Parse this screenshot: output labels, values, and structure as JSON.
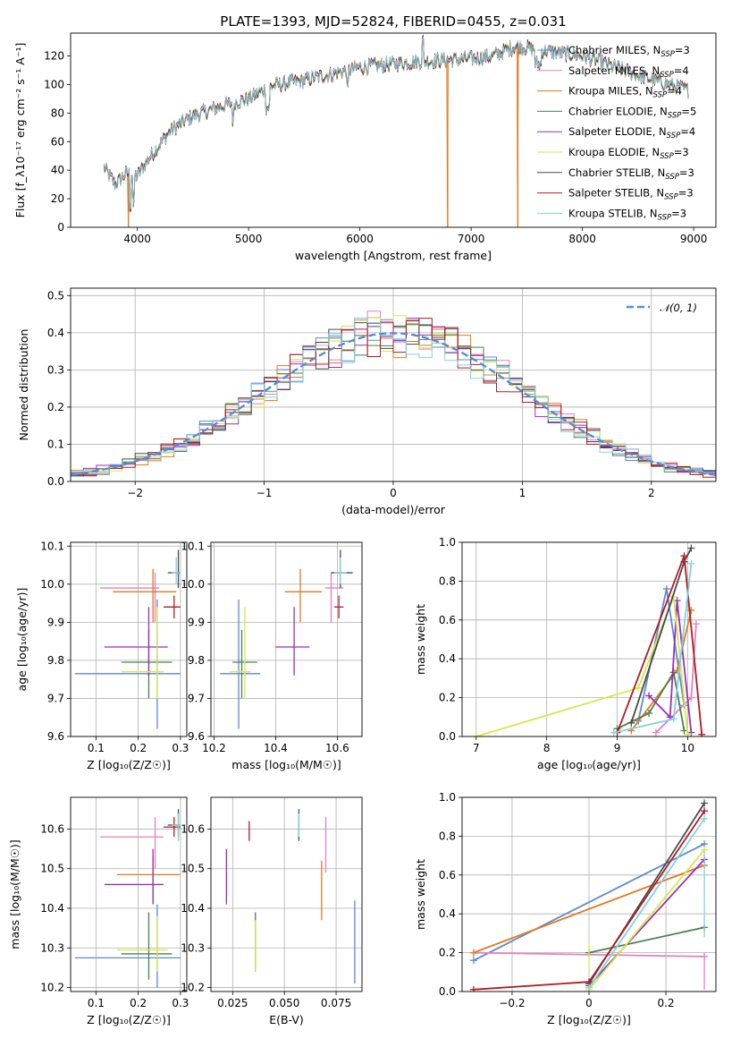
{
  "figure": {
    "title": "PLATE=1393, MJD=52824, FIBERID=0455, z=0.031"
  },
  "colors": {
    "Chabrier MILES": "#5a8ad6",
    "Salpeter MILES": "#e67fc0",
    "Kroupa MILES": "#e07a1f",
    "Chabrier ELODIE": "#4f7f4f",
    "Salpeter ELODIE": "#9a2fb8",
    "Kroupa ELODIE": "#d5e84a",
    "Chabrier STELIB": "#4a4a4a",
    "Salpeter STELIB": "#b01c22",
    "Kroupa STELIB": "#7dd3e0"
  },
  "chart_data": [
    {
      "id": "spectrum",
      "type": "line",
      "xlabel": "wavelength [Angstrom, rest frame]",
      "ylabel": "Flux [f_λ10⁻¹⁷ erg cm⁻² s⁻¹ A⁻¹]",
      "xlim": [
        3400,
        9200
      ],
      "ylim": [
        0,
        136
      ],
      "xticks": [
        4000,
        5000,
        6000,
        7000,
        8000,
        9000
      ],
      "yticks": [
        0,
        20,
        40,
        60,
        80,
        100,
        120
      ],
      "grid": false,
      "legend_position": "top-right",
      "wavelength_range": [
        3700,
        8950
      ],
      "continuum_knots": {
        "x": [
          3700,
          3800,
          3900,
          4000,
          4100,
          4200,
          4300,
          4500,
          4800,
          5000,
          5200,
          5500,
          6000,
          6500,
          7000,
          7200,
          7400,
          7700,
          8000,
          8300,
          8600,
          8950
        ],
        "y": [
          42,
          30,
          38,
          36,
          48,
          58,
          68,
          78,
          86,
          90,
          99,
          103,
          112,
          116,
          118,
          120,
          127,
          123,
          120,
          112,
          104,
          96
        ]
      },
      "dropouts": [
        {
          "x": 3920,
          "series": "Kroupa MILES"
        },
        {
          "x": 6790,
          "series": "Kroupa MILES"
        },
        {
          "x": 7420,
          "series": "Kroupa MILES"
        }
      ],
      "series": [
        {
          "name": "Chabrier MILES",
          "nssp": "3"
        },
        {
          "name": "Salpeter MILES",
          "nssp": "4"
        },
        {
          "name": "Kroupa MILES",
          "nssp": "4"
        },
        {
          "name": "Chabrier ELODIE",
          "nssp": "5"
        },
        {
          "name": "Salpeter ELODIE",
          "nssp": "4"
        },
        {
          "name": "Kroupa ELODIE",
          "nssp": "3"
        },
        {
          "name": "Chabrier STELIB",
          "nssp": "3"
        },
        {
          "name": "Salpeter STELIB",
          "nssp": "3"
        },
        {
          "name": "Kroupa STELIB",
          "nssp": "3"
        }
      ],
      "legend_nssp_prefix": "N",
      "legend_nssp_sub": "SSP"
    },
    {
      "id": "residuals",
      "type": "line",
      "xlabel": "(data-model)/error",
      "ylabel": "Normed distribution",
      "xlim": [
        -2.5,
        2.5
      ],
      "ylim": [
        0,
        0.52
      ],
      "xticks": [
        -2,
        -1,
        0,
        1,
        2
      ],
      "yticks": [
        0.0,
        0.1,
        0.2,
        0.3,
        0.4,
        0.5
      ],
      "grid": true,
      "legend_position": "top-right",
      "legend_label": "𝒩(0, 1)",
      "gaussian": {
        "mu": 0,
        "sigma": 1,
        "color": "#5a8ad6"
      },
      "histogram_bins": {
        "start": -2.5,
        "width": 0.1,
        "count": 50
      },
      "histogram_seed": 7
    },
    {
      "id": "age_vs_Z",
      "type": "scatter",
      "xlabel": "Z [log₁₀(Z/Z☉)]",
      "ylabel": "age  [log₁₀(age/yr)]",
      "xlim": [
        0.04,
        0.315
      ],
      "ylim": [
        9.6,
        10.11
      ],
      "xticks": [
        0.1,
        0.2,
        0.3
      ],
      "yticks": [
        9.6,
        9.7,
        9.8,
        9.9,
        10.0,
        10.1
      ],
      "grid": true,
      "points": [
        {
          "series": "Chabrier MILES",
          "x": 0.05,
          "x2": 0.3,
          "y": 9.765,
          "ex1": 9.765,
          "ey1": 9.765,
          "yv": [
            9.62,
            9.96
          ],
          "xv": 0.245
        },
        {
          "series": "Salpeter MILES",
          "x": 0.11,
          "x2": 0.25,
          "y": 9.99,
          "yv": [
            9.9,
            10.03
          ],
          "xv": 0.24
        },
        {
          "series": "Kroupa MILES",
          "x": 0.14,
          "x2": 0.29,
          "y": 9.98,
          "yv": [
            9.9,
            10.04
          ],
          "xv": 0.235
        },
        {
          "series": "Chabrier ELODIE",
          "x": 0.16,
          "x2": 0.28,
          "y": 9.795,
          "yv": [
            9.7,
            9.88
          ],
          "xv": 0.225
        },
        {
          "series": "Salpeter ELODIE",
          "x": 0.12,
          "x2": 0.27,
          "y": 9.835,
          "yv": [
            9.76,
            9.94
          ],
          "xv": 0.225
        },
        {
          "series": "Kroupa ELODIE",
          "x": 0.16,
          "x2": 0.26,
          "y": 9.77,
          "yv": [
            9.7,
            9.94
          ],
          "xv": 0.245
        },
        {
          "series": "Chabrier STELIB",
          "x": 0.27,
          "x2": 0.3,
          "y": 10.03,
          "yv": [
            9.99,
            10.09
          ],
          "xv": 0.295
        },
        {
          "series": "Salpeter STELIB",
          "x": 0.26,
          "x2": 0.3,
          "y": 9.94,
          "yv": [
            9.91,
            9.97
          ],
          "xv": 0.285
        },
        {
          "series": "Kroupa STELIB",
          "x": 0.28,
          "x2": 0.3,
          "y": 10.03,
          "yv": [
            10.0,
            10.07
          ],
          "xv": 0.29
        }
      ]
    },
    {
      "id": "age_vs_mass",
      "type": "scatter",
      "xlabel": "mass [log₁₀(M/M☉)]",
      "ylabel": "",
      "xlim": [
        10.19,
        10.68
      ],
      "ylim": [
        9.6,
        10.11
      ],
      "xticks": [
        10.2,
        10.4,
        10.6
      ],
      "yticks": [
        9.6,
        9.7,
        9.8,
        9.9,
        10.0,
        10.1
      ],
      "grid": true,
      "points": [
        {
          "series": "Chabrier MILES",
          "x": 10.22,
          "x2": 10.35,
          "y": 9.765,
          "yv": [
            9.62,
            9.96
          ],
          "xv": 10.28
        },
        {
          "series": "Salpeter MILES",
          "x": 10.56,
          "x2": 10.62,
          "y": 9.99,
          "yv": [
            9.9,
            10.03
          ],
          "xv": 10.58
        },
        {
          "series": "Kroupa MILES",
          "x": 10.43,
          "x2": 10.55,
          "y": 9.98,
          "yv": [
            9.9,
            10.04
          ],
          "xv": 10.48
        },
        {
          "series": "Chabrier ELODIE",
          "x": 10.26,
          "x2": 10.34,
          "y": 9.795,
          "yv": [
            9.7,
            9.88
          ],
          "xv": 10.29
        },
        {
          "series": "Salpeter ELODIE",
          "x": 10.4,
          "x2": 10.51,
          "y": 9.835,
          "yv": [
            9.76,
            9.94
          ],
          "xv": 10.46
        },
        {
          "series": "Kroupa ELODIE",
          "x": 10.25,
          "x2": 10.32,
          "y": 9.77,
          "yv": [
            9.7,
            9.94
          ],
          "xv": 10.3
        },
        {
          "series": "Chabrier STELIB",
          "x": 10.58,
          "x2": 10.65,
          "y": 10.03,
          "yv": [
            9.99,
            10.09
          ],
          "xv": 10.61
        },
        {
          "series": "Salpeter STELIB",
          "x": 10.59,
          "x2": 10.62,
          "y": 9.94,
          "yv": [
            9.91,
            9.97
          ],
          "xv": 10.605
        },
        {
          "series": "Kroupa STELIB",
          "x": 10.59,
          "x2": 10.63,
          "y": 10.03,
          "yv": [
            10.0,
            10.07
          ],
          "xv": 10.61
        }
      ]
    },
    {
      "id": "weight_vs_age",
      "type": "line",
      "xlabel": "age  [log₁₀(age/yr)]",
      "ylabel": "mass weight",
      "xlim": [
        6.8,
        10.4
      ],
      "ylim": [
        0,
        1.0
      ],
      "xticks": [
        7,
        8,
        9,
        10
      ],
      "yticks": [
        0.0,
        0.2,
        0.4,
        0.6,
        0.8,
        1.0
      ],
      "grid": true,
      "series": [
        {
          "name": "Chabrier MILES",
          "x": [
            9.3,
            9.7,
            9.95
          ],
          "y": [
            0.08,
            0.76,
            0.16
          ]
        },
        {
          "name": "Salpeter MILES",
          "x": [
            9.55,
            10.05,
            10.12
          ],
          "y": [
            0.02,
            0.2,
            0.58
          ]
        },
        {
          "name": "Kroupa MILES",
          "x": [
            9.2,
            9.85,
            10.05
          ],
          "y": [
            0.03,
            0.34,
            0.65
          ]
        },
        {
          "name": "Chabrier ELODIE",
          "x": [
            9.0,
            9.45,
            9.8,
            9.95
          ],
          "y": [
            0.04,
            0.12,
            0.33,
            0.03
          ]
        },
        {
          "name": "Salpeter ELODIE",
          "x": [
            9.45,
            9.75,
            9.85,
            10.05
          ],
          "y": [
            0.21,
            0.1,
            0.7,
            0.02
          ]
        },
        {
          "name": "Kroupa ELODIE",
          "x": [
            7.0,
            9.3,
            9.8,
            10.0
          ],
          "y": [
            0.0,
            0.25,
            0.72,
            0.01
          ]
        },
        {
          "name": "Chabrier STELIB",
          "x": [
            9.2,
            9.95,
            10.05
          ],
          "y": [
            0.07,
            0.9,
            0.97
          ]
        },
        {
          "name": "Salpeter STELIB",
          "x": [
            9.0,
            9.95,
            10.2
          ],
          "y": [
            0.02,
            0.93,
            0.01
          ]
        },
        {
          "name": "Kroupa STELIB",
          "x": [
            8.95,
            9.8,
            10.05
          ],
          "y": [
            0.02,
            0.09,
            0.89
          ]
        }
      ]
    },
    {
      "id": "mass_vs_Z",
      "type": "scatter",
      "xlabel": "Z [log₁₀(Z/Z☉)]",
      "ylabel": "mass [log₁₀(M/M☉)]",
      "xlim": [
        0.04,
        0.315
      ],
      "ylim": [
        10.19,
        10.68
      ],
      "xticks": [
        0.1,
        0.2,
        0.3
      ],
      "yticks": [
        10.2,
        10.3,
        10.4,
        10.5,
        10.6
      ],
      "grid": true,
      "points": [
        {
          "series": "Chabrier MILES",
          "x": 0.05,
          "x2": 0.3,
          "y": 10.275,
          "yv": [
            10.2,
            10.41
          ],
          "xv": 0.245
        },
        {
          "series": "Salpeter MILES",
          "x": 0.11,
          "x2": 0.26,
          "y": 10.58,
          "yv": [
            10.5,
            10.63
          ],
          "xv": 0.24
        },
        {
          "series": "Kroupa MILES",
          "x": 0.15,
          "x2": 0.3,
          "y": 10.485,
          "yv": [
            10.41,
            10.53
          ],
          "xv": 0.235
        },
        {
          "series": "Chabrier ELODIE",
          "x": 0.16,
          "x2": 0.28,
          "y": 10.285,
          "yv": [
            10.22,
            10.39
          ],
          "xv": 0.225
        },
        {
          "series": "Salpeter ELODIE",
          "x": 0.12,
          "x2": 0.26,
          "y": 10.46,
          "yv": [
            10.41,
            10.55
          ],
          "xv": 0.235
        },
        {
          "series": "Kroupa ELODIE",
          "x": 0.15,
          "x2": 0.27,
          "y": 10.295,
          "yv": [
            10.24,
            10.38
          ],
          "xv": 0.245
        },
        {
          "series": "Chabrier STELIB",
          "x": 0.27,
          "x2": 0.3,
          "y": 10.61,
          "yv": [
            10.58,
            10.65
          ],
          "xv": 0.295
        },
        {
          "series": "Salpeter STELIB",
          "x": 0.26,
          "x2": 0.3,
          "y": 10.605,
          "yv": [
            10.58,
            10.63
          ],
          "xv": 0.285
        },
        {
          "series": "Kroupa STELIB",
          "x": 0.28,
          "x2": 0.3,
          "y": 10.61,
          "yv": [
            10.57,
            10.64
          ],
          "xv": 0.295
        }
      ]
    },
    {
      "id": "mass_vs_EBV",
      "type": "scatter",
      "xlabel": "E(B-V)",
      "ylabel": "",
      "xlim": [
        0.0145,
        0.0875
      ],
      "ylim": [
        10.19,
        10.68
      ],
      "xticks": [
        0.025,
        0.05,
        0.075
      ],
      "yticks": [
        10.2,
        10.3,
        10.4,
        10.5,
        10.6
      ],
      "grid": true,
      "points": [
        {
          "series": "Chabrier MILES",
          "xv": 0.084,
          "yv": [
            10.21,
            10.42
          ]
        },
        {
          "series": "Salpeter MILES",
          "xv": 0.07,
          "yv": [
            10.49,
            10.63
          ]
        },
        {
          "series": "Kroupa MILES",
          "xv": 0.068,
          "yv": [
            10.37,
            10.52
          ]
        },
        {
          "series": "Chabrier ELODIE",
          "xv": 0.036,
          "yv": [
            10.24,
            10.39
          ]
        },
        {
          "series": "Salpeter ELODIE",
          "xv": 0.022,
          "yv": [
            10.41,
            10.55
          ]
        },
        {
          "series": "Kroupa ELODIE",
          "xv": 0.036,
          "yv": [
            10.24,
            10.37
          ]
        },
        {
          "series": "Chabrier STELIB",
          "xv": 0.057,
          "yv": [
            10.57,
            10.65
          ]
        },
        {
          "series": "Salpeter STELIB",
          "xv": 0.033,
          "yv": [
            10.57,
            10.62
          ]
        },
        {
          "series": "Kroupa STELIB",
          "xv": 0.057,
          "yv": [
            10.58,
            10.64
          ]
        }
      ]
    },
    {
      "id": "weight_vs_Z",
      "type": "line",
      "xlabel": "Z [log₁₀(Z/Z☉)]",
      "ylabel": "mass weight",
      "xlim": [
        -0.33,
        0.33
      ],
      "ylim": [
        0,
        1.0
      ],
      "xticks": [
        -0.2,
        0.0,
        0.2
      ],
      "yticks": [
        0.0,
        0.2,
        0.4,
        0.6,
        0.8,
        1.0
      ],
      "grid": true,
      "series": [
        {
          "name": "Chabrier MILES",
          "x": [
            -0.3,
            0.3
          ],
          "y": [
            0.16,
            0.76
          ]
        },
        {
          "name": "Salpeter MILES",
          "x": [
            -0.3,
            0.3
          ],
          "y": [
            0.2,
            0.18
          ]
        },
        {
          "name": "Kroupa MILES",
          "x": [
            -0.3,
            0.3
          ],
          "y": [
            0.2,
            0.65
          ]
        },
        {
          "name": "Chabrier ELODIE",
          "x": [
            0.0,
            0.3
          ],
          "y": [
            0.2,
            0.33
          ]
        },
        {
          "name": "Salpeter ELODIE",
          "x": [
            0.0,
            0.3
          ],
          "y": [
            0.03,
            0.68
          ]
        },
        {
          "name": "Kroupa ELODIE",
          "x": [
            0.0,
            0.3
          ],
          "y": [
            0.01,
            0.73
          ]
        },
        {
          "name": "Chabrier STELIB",
          "x": [
            0.0,
            0.3
          ],
          "y": [
            0.04,
            0.97
          ]
        },
        {
          "name": "Salpeter STELIB",
          "x": [
            -0.3,
            0.0,
            0.3
          ],
          "y": [
            0.01,
            0.05,
            0.93
          ]
        },
        {
          "name": "Kroupa STELIB",
          "x": [
            0.0,
            0.3
          ],
          "y": [
            0.02,
            0.89
          ]
        }
      ],
      "vertical_errs": [
        {
          "x": 0.0,
          "y": [
            0.1,
            0.26
          ],
          "color": "#d5e84a"
        },
        {
          "x": 0.3,
          "y": [
            0.01,
            0.2
          ],
          "color": "#e67fc0"
        },
        {
          "x": 0.3,
          "y": [
            0.28,
            0.72
          ],
          "color": "#7dd3e0"
        }
      ]
    }
  ]
}
